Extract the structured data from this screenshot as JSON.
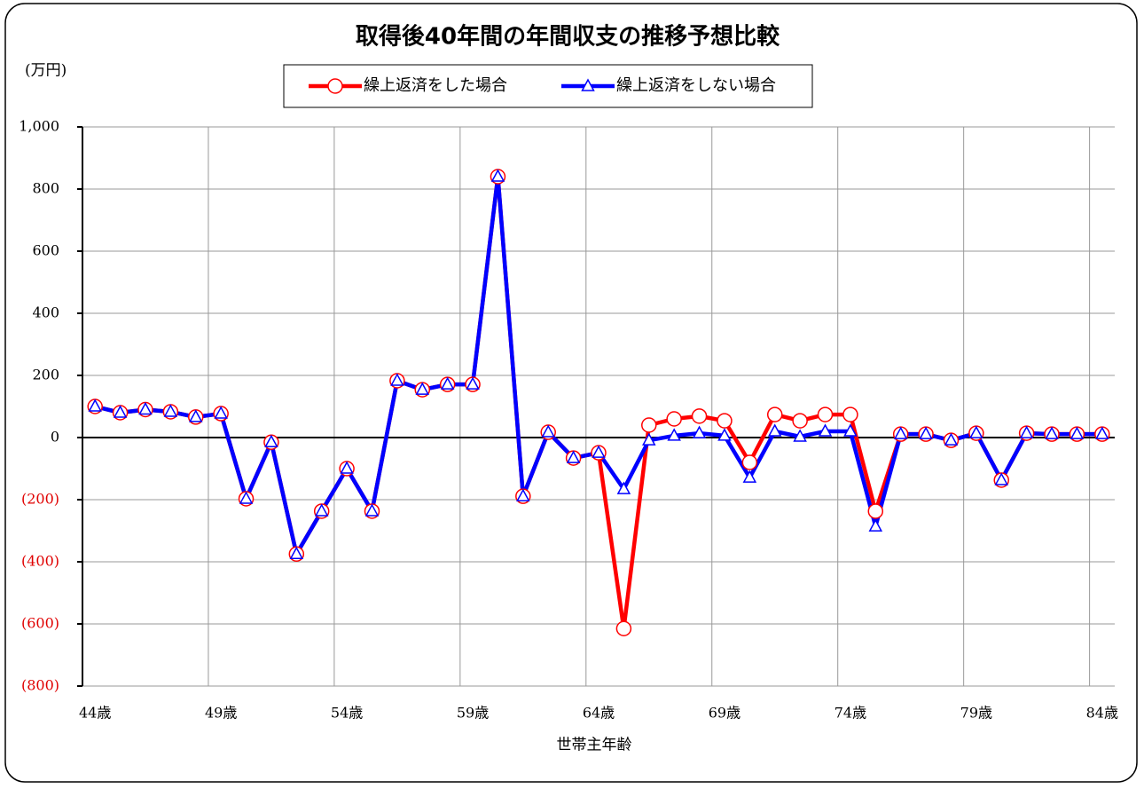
{
  "chart_data": {
    "type": "line",
    "title": "取得後40年間の年間収支の推移予想比較",
    "y_unit_label": "(万円)",
    "x_label": "世帯主年齢",
    "categories": [
      "44歳",
      null,
      null,
      null,
      null,
      "49歳",
      null,
      null,
      null,
      null,
      "54歳",
      null,
      null,
      null,
      null,
      "59歳",
      null,
      null,
      null,
      null,
      "64歳",
      null,
      null,
      null,
      null,
      "69歳",
      null,
      null,
      null,
      null,
      "74歳",
      null,
      null,
      null,
      null,
      "79歳",
      null,
      null,
      null,
      null,
      "84歳"
    ],
    "series": [
      {
        "name": "繰上返済をした場合",
        "color": "#ff0000",
        "marker": "circle",
        "values": [
          100,
          80,
          90,
          83,
          66,
          77,
          -197,
          -15,
          -375,
          -237,
          -100,
          -237,
          183,
          154,
          171,
          171,
          840,
          -189,
          17,
          -66,
          -49,
          -615,
          40,
          60,
          69,
          54,
          -80,
          74,
          54,
          74,
          74,
          -237,
          11,
          11,
          -9,
          14,
          -137,
          14,
          11,
          11,
          11
        ]
      },
      {
        "name": "繰上返済をしない場合",
        "color": "#0000ff",
        "marker": "triangle",
        "values": [
          100,
          80,
          90,
          83,
          66,
          77,
          -197,
          -15,
          -375,
          -237,
          -100,
          -237,
          183,
          154,
          171,
          171,
          840,
          -189,
          17,
          -66,
          -49,
          -166,
          -9,
          6,
          14,
          6,
          -129,
          20,
          3,
          20,
          20,
          -286,
          11,
          11,
          -9,
          14,
          -137,
          14,
          11,
          11,
          11
        ]
      }
    ],
    "ylim": [
      -800,
      1000
    ],
    "yticks": [
      {
        "value": 1000,
        "label": "1,000"
      },
      800,
      600,
      400,
      200,
      0,
      {
        "value": -200,
        "label": "(200)"
      },
      {
        "value": -400,
        "label": "(400)"
      },
      {
        "value": -600,
        "label": "(600)"
      },
      {
        "value": -800,
        "label": "(800)"
      }
    ],
    "negative_tick_color": "#e00000",
    "grid": true,
    "legend": "top"
  }
}
